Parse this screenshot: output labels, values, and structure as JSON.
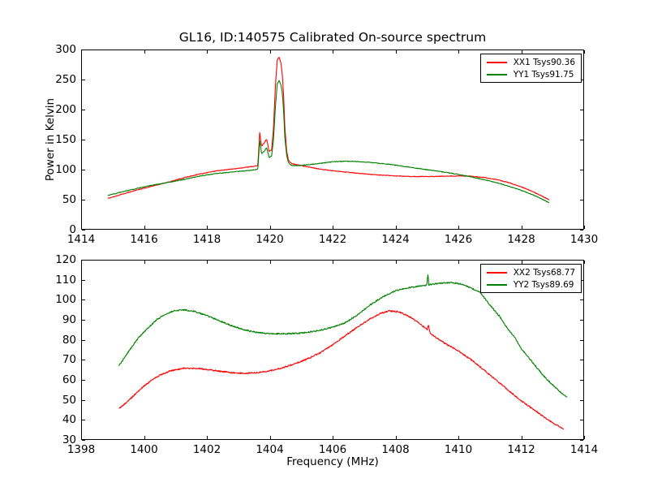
{
  "figure": {
    "colors": {
      "background": "#ffffff",
      "axes_frame": "#000000",
      "text": "#000000"
    }
  },
  "chart_data": [
    {
      "type": "line",
      "title": "GL16, ID:140575 Calibrated On-source spectrum",
      "xlabel": "",
      "ylabel": "Power in Kelvin",
      "xlim": [
        1414,
        1430
      ],
      "ylim": [
        0,
        300
      ],
      "xticks": [
        1414,
        1416,
        1418,
        1420,
        1422,
        1424,
        1426,
        1428,
        1430
      ],
      "yticks": [
        0,
        50,
        100,
        150,
        200,
        250,
        300
      ],
      "grid": false,
      "legend_position": "upper right",
      "series": [
        {
          "name": "XX1 Tsys90.36",
          "color": "#ff0000",
          "noise": 0.55,
          "points": [
            [
              1414.85,
              52
            ],
            [
              1415.3,
              59
            ],
            [
              1415.8,
              66.5
            ],
            [
              1416.3,
              73
            ],
            [
              1416.8,
              79.5
            ],
            [
              1417.3,
              87
            ],
            [
              1417.8,
              93
            ],
            [
              1418.3,
              98
            ],
            [
              1418.8,
              101
            ],
            [
              1419.2,
              103.5
            ],
            [
              1419.5,
              105.5
            ],
            [
              1419.62,
              107
            ],
            [
              1419.68,
              162
            ],
            [
              1419.74,
              139
            ],
            [
              1419.82,
              144
            ],
            [
              1419.9,
              151
            ],
            [
              1419.98,
              130
            ],
            [
              1420.06,
              133
            ],
            [
              1420.12,
              170
            ],
            [
              1420.18,
              240
            ],
            [
              1420.24,
              283
            ],
            [
              1420.3,
              287
            ],
            [
              1420.36,
              277
            ],
            [
              1420.4,
              258
            ],
            [
              1420.44,
              225
            ],
            [
              1420.48,
              172
            ],
            [
              1420.54,
              130
            ],
            [
              1420.6,
              115
            ],
            [
              1420.7,
              110
            ],
            [
              1420.9,
              108
            ],
            [
              1421.2,
              104.5
            ],
            [
              1421.6,
              101
            ],
            [
              1422,
              98
            ],
            [
              1422.5,
              95.5
            ],
            [
              1423,
              93
            ],
            [
              1423.5,
              91
            ],
            [
              1424,
              89.5
            ],
            [
              1424.5,
              88.5
            ],
            [
              1425,
              88.5
            ],
            [
              1425.5,
              89
            ],
            [
              1426,
              89.5
            ],
            [
              1426.4,
              89
            ],
            [
              1426.8,
              87
            ],
            [
              1427.2,
              83.5
            ],
            [
              1427.6,
              78.5
            ],
            [
              1428,
              71.5
            ],
            [
              1428.4,
              62.5
            ],
            [
              1428.89,
              50
            ]
          ]
        },
        {
          "name": "YY1 Tsys91.75",
          "color": "#008000",
          "noise": 0.55,
          "points": [
            [
              1414.85,
              57
            ],
            [
              1415.3,
              63
            ],
            [
              1415.8,
              69
            ],
            [
              1416.3,
              74.5
            ],
            [
              1416.8,
              79
            ],
            [
              1417.3,
              84
            ],
            [
              1417.8,
              89.5
            ],
            [
              1418.3,
              93.5
            ],
            [
              1418.8,
              96
            ],
            [
              1419.2,
              98
            ],
            [
              1419.5,
              99.5
            ],
            [
              1419.62,
              100.5
            ],
            [
              1419.68,
              148
            ],
            [
              1419.74,
              127
            ],
            [
              1419.82,
              130
            ],
            [
              1419.9,
              137
            ],
            [
              1419.98,
              120
            ],
            [
              1420.06,
              123
            ],
            [
              1420.12,
              150
            ],
            [
              1420.18,
              205
            ],
            [
              1420.24,
              243
            ],
            [
              1420.3,
              248
            ],
            [
              1420.36,
              241
            ],
            [
              1420.4,
              228
            ],
            [
              1420.44,
              198
            ],
            [
              1420.48,
              154
            ],
            [
              1420.54,
              123
            ],
            [
              1420.6,
              111
            ],
            [
              1420.7,
              107
            ],
            [
              1420.9,
              106.5
            ],
            [
              1421.2,
              108
            ],
            [
              1421.6,
              110.5
            ],
            [
              1422,
              113
            ],
            [
              1422.4,
              114
            ],
            [
              1422.8,
              113.5
            ],
            [
              1423.2,
              112
            ],
            [
              1423.6,
              110
            ],
            [
              1424,
              107.5
            ],
            [
              1424.4,
              104.5
            ],
            [
              1424.8,
              101.5
            ],
            [
              1425.2,
              98.5
            ],
            [
              1425.6,
              95.5
            ],
            [
              1426,
              92
            ],
            [
              1426.4,
              88
            ],
            [
              1426.8,
              83.5
            ],
            [
              1427.2,
              78.5
            ],
            [
              1427.6,
              72.5
            ],
            [
              1428,
              65.5
            ],
            [
              1428.4,
              57.5
            ],
            [
              1428.89,
              45
            ]
          ]
        }
      ]
    },
    {
      "type": "line",
      "title": "",
      "xlabel": "Frequency (MHz)",
      "ylabel": "",
      "xlim": [
        1398,
        1414
      ],
      "ylim": [
        30,
        120
      ],
      "xticks": [
        1398,
        1400,
        1402,
        1404,
        1406,
        1408,
        1410,
        1412,
        1414
      ],
      "yticks": [
        30,
        40,
        50,
        60,
        70,
        80,
        90,
        100,
        110,
        120
      ],
      "grid": false,
      "legend_position": "upper right",
      "series": [
        {
          "name": "XX2 Tsys68.77",
          "color": "#ff0000",
          "noise": 0.35,
          "points": [
            [
              1399.2,
              45.5
            ],
            [
              1399.6,
              51
            ],
            [
              1400,
              57
            ],
            [
              1400.4,
              61.5
            ],
            [
              1400.8,
              64.3
            ],
            [
              1401.2,
              65.7
            ],
            [
              1401.6,
              65.8
            ],
            [
              1402,
              65.2
            ],
            [
              1402.4,
              64.3
            ],
            [
              1402.8,
              63.6
            ],
            [
              1403.2,
              63.3
            ],
            [
              1403.6,
              63.6
            ],
            [
              1404,
              64.5
            ],
            [
              1404.4,
              66
            ],
            [
              1404.8,
              68
            ],
            [
              1405.2,
              70.5
            ],
            [
              1405.6,
              73.5
            ],
            [
              1406,
              77.5
            ],
            [
              1406.4,
              82
            ],
            [
              1406.8,
              86.5
            ],
            [
              1407.2,
              90.5
            ],
            [
              1407.5,
              93
            ],
            [
              1407.8,
              94.5
            ],
            [
              1408.1,
              94
            ],
            [
              1408.4,
              92
            ],
            [
              1408.7,
              89
            ],
            [
              1408.9,
              86.5
            ],
            [
              1409,
              85
            ],
            [
              1409.05,
              87
            ],
            [
              1409.1,
              83.5
            ],
            [
              1409.3,
              81
            ],
            [
              1409.6,
              78
            ],
            [
              1410,
              74.5
            ],
            [
              1410.5,
              69
            ],
            [
              1411,
              62.5
            ],
            [
              1411.5,
              56
            ],
            [
              1412,
              49.5
            ],
            [
              1412.5,
              44
            ],
            [
              1413,
              38.5
            ],
            [
              1413.35,
              35.5
            ]
          ]
        },
        {
          "name": "YY2 Tsys89.69",
          "color": "#008000",
          "noise": 0.35,
          "points": [
            [
              1399.2,
              67
            ],
            [
              1399.5,
              74
            ],
            [
              1399.8,
              80.5
            ],
            [
              1400.1,
              85.5
            ],
            [
              1400.4,
              90
            ],
            [
              1400.7,
              93
            ],
            [
              1401,
              94.7
            ],
            [
              1401.3,
              94.9
            ],
            [
              1401.6,
              94.2
            ],
            [
              1401.9,
              92.7
            ],
            [
              1402.2,
              90.8
            ],
            [
              1402.5,
              88.8
            ],
            [
              1402.8,
              87
            ],
            [
              1403.1,
              85.4
            ],
            [
              1403.4,
              84.2
            ],
            [
              1403.7,
              83.5
            ],
            [
              1404,
              83.1
            ],
            [
              1404.4,
              83
            ],
            [
              1404.8,
              83.2
            ],
            [
              1405.2,
              83.7
            ],
            [
              1405.6,
              84.8
            ],
            [
              1406,
              86.3
            ],
            [
              1406.4,
              88.5
            ],
            [
              1406.8,
              92.5
            ],
            [
              1407.2,
              97.5
            ],
            [
              1407.6,
              101.5
            ],
            [
              1408,
              104.5
            ],
            [
              1408.4,
              106
            ],
            [
              1408.8,
              107
            ],
            [
              1409,
              107.3
            ],
            [
              1409.03,
              113
            ],
            [
              1409.06,
              107.5
            ],
            [
              1409.4,
              108.3
            ],
            [
              1409.8,
              108.5
            ],
            [
              1410.1,
              107.9
            ],
            [
              1410.4,
              106
            ],
            [
              1410.7,
              103.5
            ],
            [
              1411,
              97.5
            ],
            [
              1411.3,
              92
            ],
            [
              1411.5,
              87
            ],
            [
              1411.8,
              81
            ],
            [
              1412,
              75.5
            ],
            [
              1412.3,
              70
            ],
            [
              1412.5,
              66
            ],
            [
              1412.8,
              60.5
            ],
            [
              1413.1,
              56
            ],
            [
              1413.3,
              53
            ],
            [
              1413.45,
              51.5
            ]
          ]
        }
      ]
    }
  ]
}
